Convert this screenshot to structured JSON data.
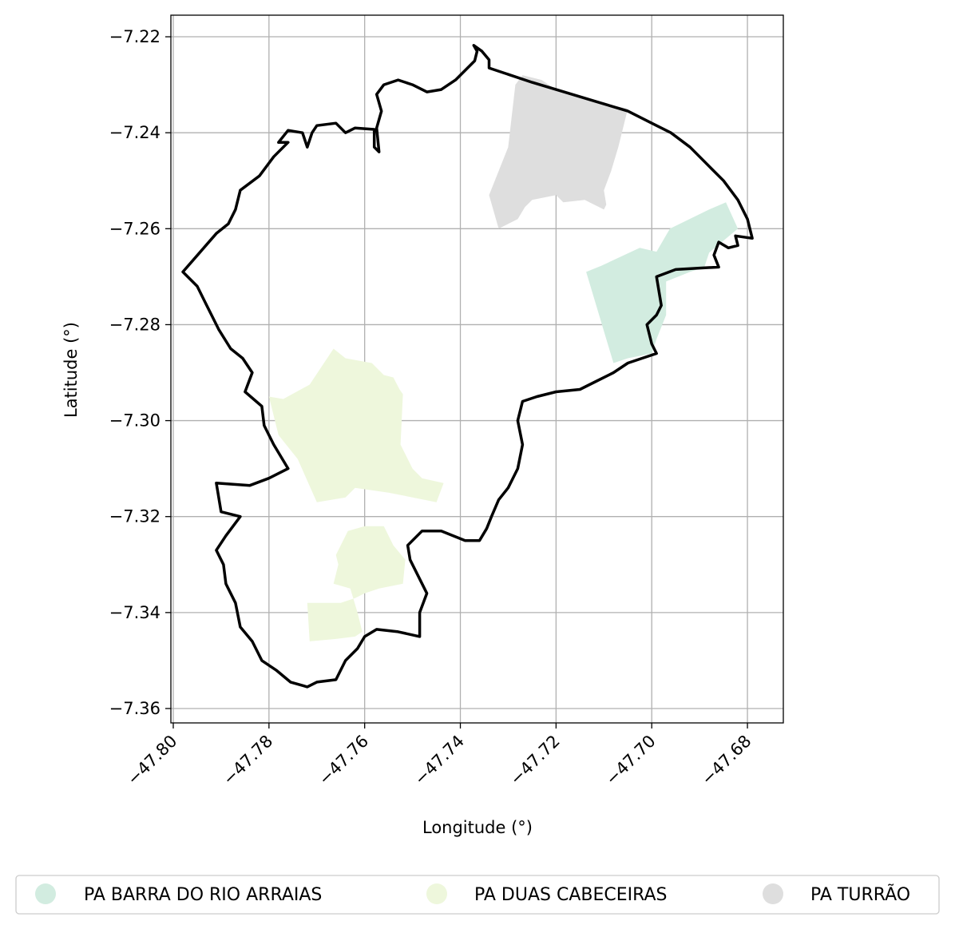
{
  "chart_data": {
    "type": "map",
    "xlabel": "Longitude (°)",
    "ylabel": "Latitude (°)",
    "xlim": [
      -47.8005,
      -47.6725
    ],
    "ylim": [
      -7.363,
      -7.2155
    ],
    "x_ticks": [
      {
        "value": -47.8,
        "label": "−47.80"
      },
      {
        "value": -47.78,
        "label": "−47.78"
      },
      {
        "value": -47.76,
        "label": "−47.76"
      },
      {
        "value": -47.74,
        "label": "−47.74"
      },
      {
        "value": -47.72,
        "label": "−47.72"
      },
      {
        "value": -47.7,
        "label": "−47.70"
      },
      {
        "value": -47.68,
        "label": "−47.68"
      }
    ],
    "y_ticks": [
      {
        "value": -7.22,
        "label": "−7.22"
      },
      {
        "value": -7.24,
        "label": "−7.24"
      },
      {
        "value": -7.26,
        "label": "−7.26"
      },
      {
        "value": -7.28,
        "label": "−7.28"
      },
      {
        "value": -7.3,
        "label": "−7.30"
      },
      {
        "value": -7.32,
        "label": "−7.32"
      },
      {
        "value": -7.34,
        "label": "−7.34"
      },
      {
        "value": -7.36,
        "label": "−7.36"
      }
    ],
    "grid": true,
    "legend_position": "bottom",
    "series": [
      {
        "name": "PA BARRA DO RIO ARRAIAS",
        "color": "#d2ece0",
        "polygons": [
          [
            [
              -47.7137,
              -7.269
            ],
            [
              -47.7105,
              -7.2677
            ],
            [
              -47.7025,
              -7.264
            ],
            [
              -47.699,
              -7.2648
            ],
            [
              -47.6962,
              -7.26
            ],
            [
              -47.688,
              -7.256
            ],
            [
              -47.6845,
              -7.2545
            ],
            [
              -47.682,
              -7.26
            ],
            [
              -47.688,
              -7.265
            ],
            [
              -47.689,
              -7.268
            ],
            [
              -47.692,
              -7.269
            ],
            [
              -47.697,
              -7.271
            ],
            [
              -47.697,
              -7.278
            ],
            [
              -47.699,
              -7.283
            ],
            [
              -47.7,
              -7.286
            ],
            [
              -47.705,
              -7.287
            ],
            [
              -47.708,
              -7.288
            ]
          ]
        ]
      },
      {
        "name": "PA DUAS CABECEIRAS",
        "color": "#eef7dc",
        "polygons": [
          [
            [
              -47.78,
              -7.295
            ],
            [
              -47.777,
              -7.2955
            ],
            [
              -47.7715,
              -7.2925
            ],
            [
              -47.7665,
              -7.285
            ],
            [
              -47.764,
              -7.287
            ],
            [
              -47.7585,
              -7.288
            ],
            [
              -47.7575,
              -7.289
            ],
            [
              -47.756,
              -7.2905
            ],
            [
              -47.754,
              -7.291
            ],
            [
              -47.7527,
              -7.2935
            ],
            [
              -47.752,
              -7.2945
            ],
            [
              -47.7525,
              -7.305
            ],
            [
              -47.75,
              -7.31
            ],
            [
              -47.748,
              -7.312
            ],
            [
              -47.7435,
              -7.313
            ],
            [
              -47.745,
              -7.317
            ],
            [
              -47.755,
              -7.315
            ],
            [
              -47.762,
              -7.314
            ],
            [
              -47.764,
              -7.316
            ],
            [
              -47.77,
              -7.317
            ],
            [
              -47.772,
              -7.3125
            ],
            [
              -47.774,
              -7.308
            ],
            [
              -47.778,
              -7.303
            ]
          ],
          [
            [
              -47.7635,
              -7.323
            ],
            [
              -47.76,
              -7.322
            ],
            [
              -47.756,
              -7.322
            ],
            [
              -47.754,
              -7.326
            ],
            [
              -47.7515,
              -7.329
            ],
            [
              -47.752,
              -7.334
            ],
            [
              -47.757,
              -7.335
            ],
            [
              -47.76,
              -7.336
            ],
            [
              -47.762,
              -7.337
            ],
            [
              -47.765,
              -7.338
            ],
            [
              -47.77,
              -7.338
            ],
            [
              -47.772,
              -7.338
            ],
            [
              -47.7715,
              -7.346
            ],
            [
              -47.766,
              -7.3455
            ],
            [
              -47.762,
              -7.345
            ],
            [
              -47.7605,
              -7.344
            ],
            [
              -47.7615,
              -7.34
            ],
            [
              -47.763,
              -7.335
            ],
            [
              -47.7665,
              -7.334
            ],
            [
              -47.7655,
              -7.33
            ],
            [
              -47.766,
              -7.328
            ]
          ]
        ]
      },
      {
        "name": "PA TURRÃO",
        "color": "#dedede",
        "polygons": [
          [
            [
              -47.7285,
              -7.23
            ],
            [
              -47.727,
              -7.228
            ],
            [
              -47.723,
              -7.229
            ],
            [
              -47.72,
              -7.231
            ],
            [
              -47.716,
              -7.232
            ],
            [
              -47.7095,
              -7.234
            ],
            [
              -47.705,
              -7.235
            ],
            [
              -47.707,
              -7.243
            ],
            [
              -47.7085,
              -7.248
            ],
            [
              -47.71,
              -7.252
            ],
            [
              -47.7095,
              -7.255
            ],
            [
              -47.71,
              -7.256
            ],
            [
              -47.714,
              -7.254
            ],
            [
              -47.7185,
              -7.2545
            ],
            [
              -47.72,
              -7.253
            ],
            [
              -47.725,
              -7.254
            ],
            [
              -47.7265,
              -7.2555
            ],
            [
              -47.728,
              -7.258
            ],
            [
              -47.73,
              -7.259
            ],
            [
              -47.732,
              -7.26
            ],
            [
              -47.734,
              -7.253
            ],
            [
              -47.73,
              -7.243
            ]
          ]
        ]
      }
    ],
    "boundary": {
      "color": "#000000",
      "polygon": [
        [
          -47.7372,
          -7.2218
        ],
        [
          -47.7355,
          -7.223
        ],
        [
          -47.734,
          -7.2248
        ],
        [
          -47.734,
          -7.2265
        ],
        [
          -47.731,
          -7.2275
        ],
        [
          -47.725,
          -7.2295
        ],
        [
          -47.72,
          -7.231
        ],
        [
          -47.715,
          -7.2325
        ],
        [
          -47.71,
          -7.234
        ],
        [
          -47.705,
          -7.2355
        ],
        [
          -47.7,
          -7.238
        ],
        [
          -47.696,
          -7.24
        ],
        [
          -47.692,
          -7.243
        ],
        [
          -47.688,
          -7.247
        ],
        [
          -47.685,
          -7.25
        ],
        [
          -47.682,
          -7.254
        ],
        [
          -47.68,
          -7.258
        ],
        [
          -47.679,
          -7.262
        ],
        [
          -47.6825,
          -7.2615
        ],
        [
          -47.682,
          -7.2635
        ],
        [
          -47.684,
          -7.264
        ],
        [
          -47.686,
          -7.2628
        ],
        [
          -47.687,
          -7.2655
        ],
        [
          -47.686,
          -7.268
        ],
        [
          -47.69,
          -7.2682
        ],
        [
          -47.695,
          -7.2685
        ],
        [
          -47.699,
          -7.27
        ],
        [
          -47.698,
          -7.276
        ],
        [
          -47.699,
          -7.278
        ],
        [
          -47.701,
          -7.28
        ],
        [
          -47.7,
          -7.284
        ],
        [
          -47.699,
          -7.286
        ],
        [
          -47.702,
          -7.287
        ],
        [
          -47.705,
          -7.288
        ],
        [
          -47.708,
          -7.29
        ],
        [
          -47.712,
          -7.292
        ],
        [
          -47.715,
          -7.2935
        ],
        [
          -47.72,
          -7.294
        ],
        [
          -47.724,
          -7.295
        ],
        [
          -47.727,
          -7.296
        ],
        [
          -47.728,
          -7.3
        ],
        [
          -47.727,
          -7.305
        ],
        [
          -47.728,
          -7.31
        ],
        [
          -47.73,
          -7.314
        ],
        [
          -47.732,
          -7.3165
        ],
        [
          -47.7335,
          -7.32
        ],
        [
          -47.7345,
          -7.3225
        ],
        [
          -47.736,
          -7.325
        ],
        [
          -47.739,
          -7.325
        ],
        [
          -47.744,
          -7.323
        ],
        [
          -47.748,
          -7.323
        ],
        [
          -47.751,
          -7.326
        ],
        [
          -47.7505,
          -7.329
        ],
        [
          -47.749,
          -7.332
        ],
        [
          -47.747,
          -7.336
        ],
        [
          -47.7485,
          -7.34
        ],
        [
          -47.7485,
          -7.345
        ],
        [
          -47.753,
          -7.344
        ],
        [
          -47.7575,
          -7.3435
        ],
        [
          -47.76,
          -7.345
        ],
        [
          -47.7615,
          -7.3475
        ],
        [
          -47.764,
          -7.35
        ],
        [
          -47.766,
          -7.354
        ],
        [
          -47.77,
          -7.3545
        ],
        [
          -47.772,
          -7.3555
        ],
        [
          -47.7755,
          -7.3545
        ],
        [
          -47.7785,
          -7.352
        ],
        [
          -47.7815,
          -7.35
        ],
        [
          -47.7835,
          -7.346
        ],
        [
          -47.786,
          -7.343
        ],
        [
          -47.787,
          -7.338
        ],
        [
          -47.789,
          -7.334
        ],
        [
          -47.7895,
          -7.33
        ],
        [
          -47.791,
          -7.327
        ],
        [
          -47.789,
          -7.324
        ],
        [
          -47.786,
          -7.32
        ],
        [
          -47.79,
          -7.319
        ],
        [
          -47.791,
          -7.313
        ],
        [
          -47.784,
          -7.3135
        ],
        [
          -47.78,
          -7.312
        ],
        [
          -47.776,
          -7.31
        ],
        [
          -47.779,
          -7.305
        ],
        [
          -47.781,
          -7.301
        ],
        [
          -47.7815,
          -7.297
        ],
        [
          -47.785,
          -7.294
        ],
        [
          -47.7835,
          -7.29
        ],
        [
          -47.7855,
          -7.287
        ],
        [
          -47.788,
          -7.285
        ],
        [
          -47.7905,
          -7.281
        ],
        [
          -47.792,
          -7.278
        ],
        [
          -47.7935,
          -7.275
        ],
        [
          -47.795,
          -7.272
        ],
        [
          -47.798,
          -7.269
        ],
        [
          -47.7945,
          -7.265
        ],
        [
          -47.791,
          -7.261
        ],
        [
          -47.7885,
          -7.259
        ],
        [
          -47.787,
          -7.256
        ],
        [
          -47.786,
          -7.252
        ],
        [
          -47.782,
          -7.249
        ],
        [
          -47.779,
          -7.245
        ],
        [
          -47.777,
          -7.243
        ],
        [
          -47.776,
          -7.242
        ],
        [
          -47.778,
          -7.242
        ],
        [
          -47.776,
          -7.2395
        ],
        [
          -47.773,
          -7.24
        ],
        [
          -47.772,
          -7.243
        ],
        [
          -47.771,
          -7.24
        ],
        [
          -47.77,
          -7.2385
        ],
        [
          -47.766,
          -7.238
        ],
        [
          -47.764,
          -7.24
        ],
        [
          -47.762,
          -7.239
        ],
        [
          -47.758,
          -7.2393
        ],
        [
          -47.758,
          -7.243
        ],
        [
          -47.757,
          -7.244
        ],
        [
          -47.7575,
          -7.239
        ],
        [
          -47.7565,
          -7.2355
        ],
        [
          -47.7575,
          -7.232
        ],
        [
          -47.756,
          -7.23
        ],
        [
          -47.753,
          -7.229
        ],
        [
          -47.75,
          -7.23
        ],
        [
          -47.747,
          -7.2315
        ],
        [
          -47.744,
          -7.231
        ],
        [
          -47.741,
          -7.229
        ],
        [
          -47.7385,
          -7.2265
        ],
        [
          -47.737,
          -7.225
        ],
        [
          -47.7365,
          -7.223
        ]
      ]
    }
  }
}
